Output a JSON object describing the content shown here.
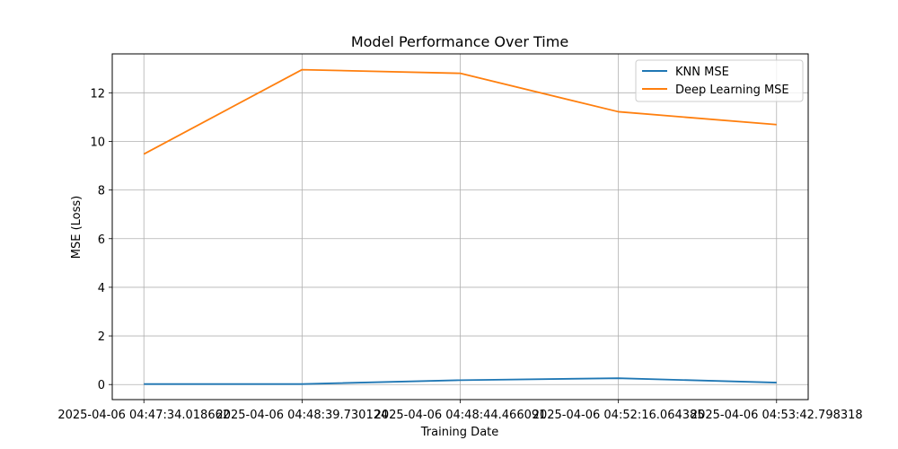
{
  "chart_data": {
    "type": "line",
    "title": "Model Performance Over Time",
    "xlabel": "Training Date",
    "ylabel": "MSE (Loss)",
    "categories": [
      "2025-04-06 04:47:34.018662",
      "2025-04-06 04:48:39.730124",
      "2025-04-06 04:48:44.466091",
      "2025-04-06 04:52:16.064385",
      "2025-04-06 04:53:42.798318"
    ],
    "series": [
      {
        "name": "KNN MSE",
        "color": "#1f77b4",
        "values": [
          0.02,
          0.02,
          0.18,
          0.26,
          0.08
        ]
      },
      {
        "name": "Deep Learning MSE",
        "color": "#ff7f0e",
        "values": [
          9.48,
          12.95,
          12.8,
          11.22,
          10.69
        ]
      }
    ],
    "ylim": [
      -0.62,
      13.6
    ],
    "yticks": [
      0,
      2,
      4,
      6,
      8,
      10,
      12
    ],
    "grid": true,
    "legend_position": "top-right"
  }
}
